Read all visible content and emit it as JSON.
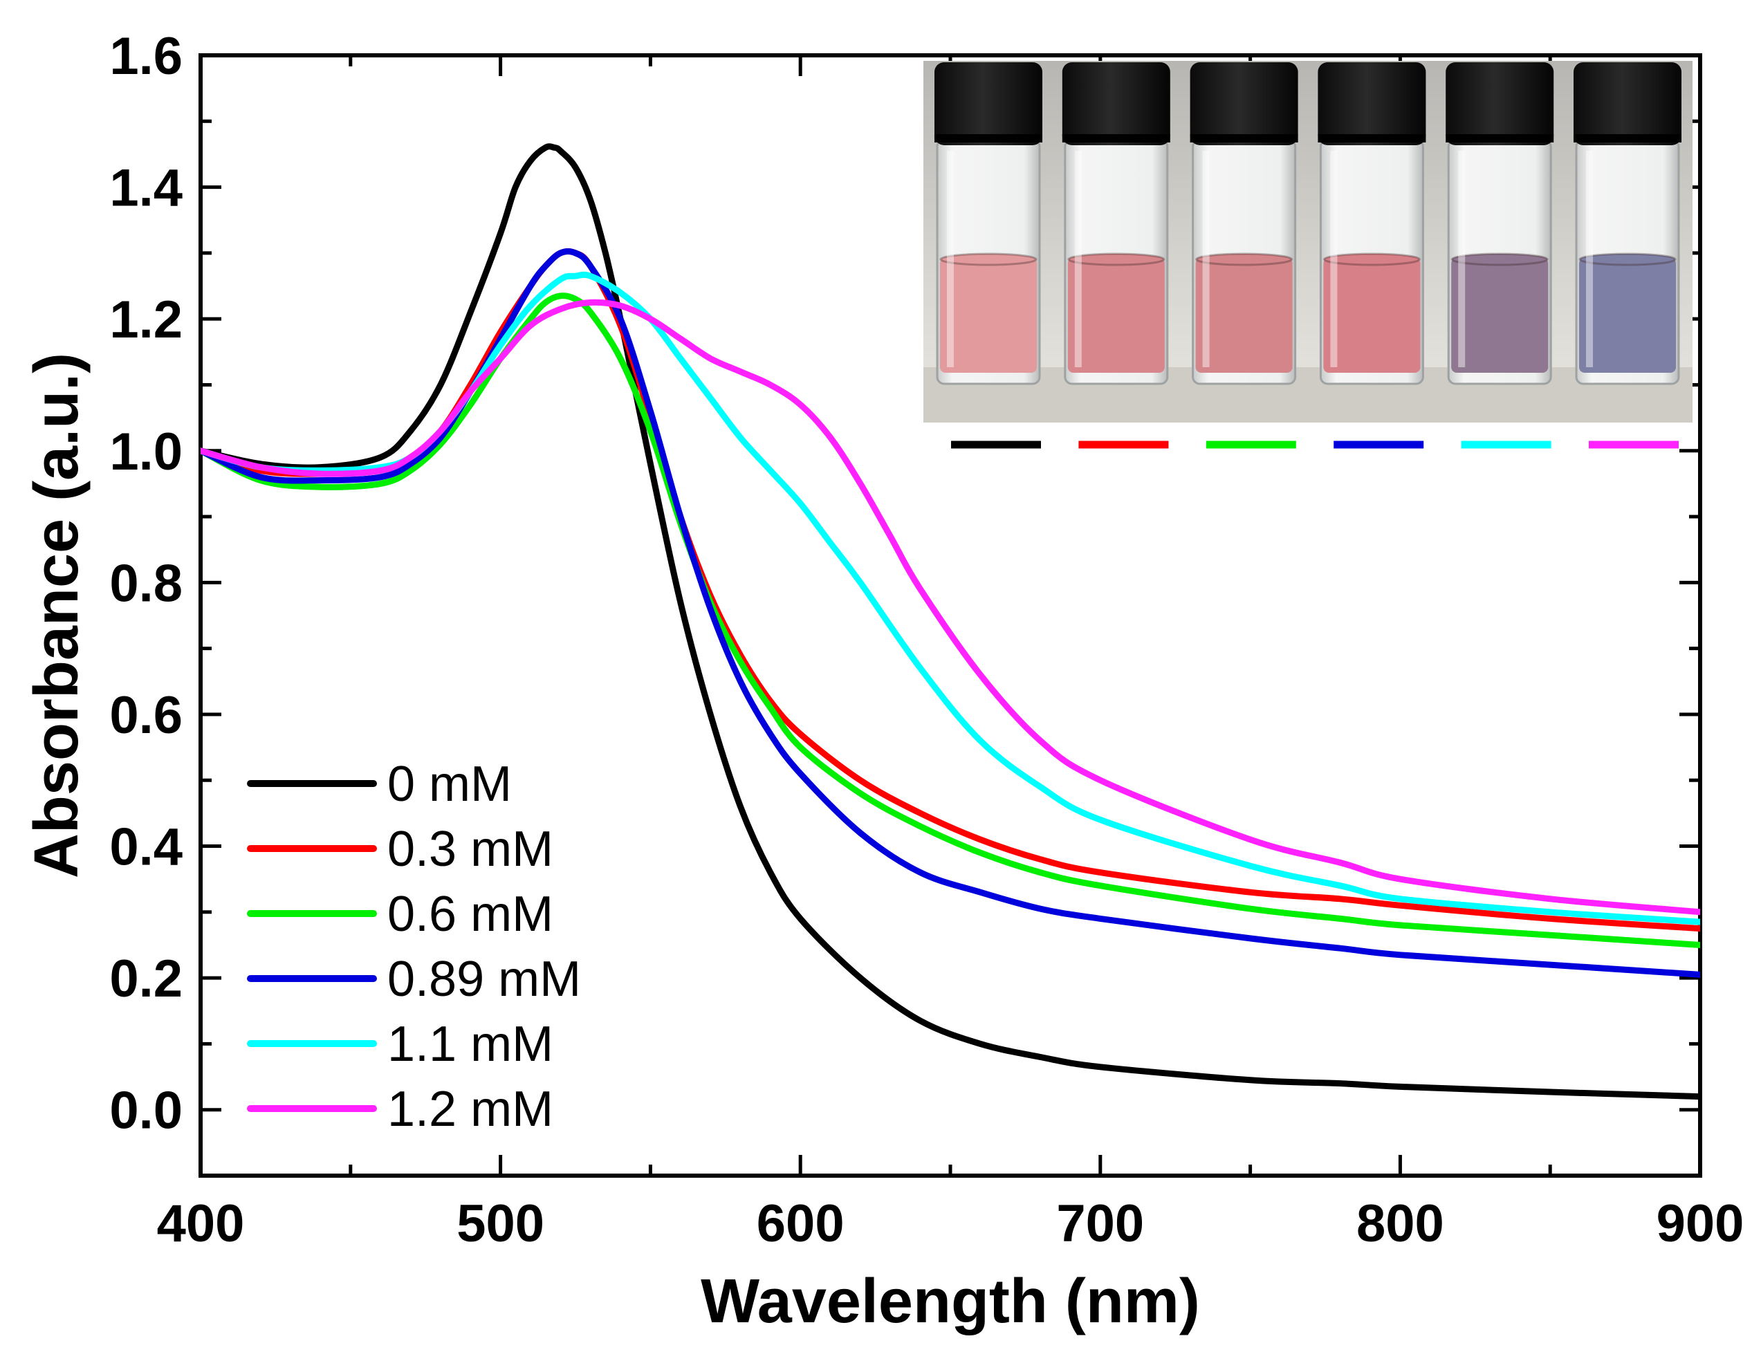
{
  "chart_data": {
    "type": "line",
    "title": "",
    "xlabel": "Wavelength (nm)",
    "ylabel": "Absorbance (a.u.)",
    "xlim": [
      400,
      900
    ],
    "ylim": [
      -0.1,
      1.6
    ],
    "xticks": [
      400,
      500,
      600,
      700,
      800,
      900
    ],
    "xtick_labels": [
      "400",
      "500",
      "600",
      "700",
      "800",
      "900"
    ],
    "yticks": [
      0.0,
      0.2,
      0.4,
      0.6,
      0.8,
      1.0,
      1.2,
      1.4,
      1.6
    ],
    "ytick_labels": [
      "0.0",
      "0.2",
      "0.4",
      "0.6",
      "0.8",
      "1.0",
      "1.2",
      "1.4",
      "1.6"
    ],
    "legend_position": "bottom-left",
    "grid": false,
    "series": [
      {
        "name": "0 mM",
        "color": "#000000",
        "x": [
          400,
          420,
          440,
          460,
          470,
          480,
          490,
          500,
          505,
          510,
          515,
          518,
          520,
          525,
          530,
          535,
          540,
          545,
          550,
          560,
          570,
          580,
          590,
          600,
          620,
          640,
          660,
          680,
          700,
          750,
          780,
          800,
          850,
          900
        ],
        "y": [
          1.0,
          0.98,
          0.975,
          0.99,
          1.03,
          1.1,
          1.21,
          1.33,
          1.4,
          1.44,
          1.46,
          1.46,
          1.455,
          1.43,
          1.38,
          1.3,
          1.2,
          1.09,
          0.98,
          0.77,
          0.6,
          0.46,
          0.36,
          0.29,
          0.2,
          0.135,
          0.1,
          0.08,
          0.065,
          0.045,
          0.04,
          0.035,
          0.027,
          0.02
        ]
      },
      {
        "name": "0.3 mM",
        "color": "#ff0000",
        "x": [
          400,
          420,
          440,
          460,
          470,
          480,
          490,
          500,
          510,
          515,
          520,
          525,
          530,
          540,
          550,
          560,
          570,
          580,
          590,
          600,
          620,
          640,
          660,
          680,
          700,
          750,
          780,
          800,
          850,
          900
        ],
        "y": [
          1.0,
          0.97,
          0.965,
          0.97,
          0.99,
          1.03,
          1.1,
          1.18,
          1.25,
          1.28,
          1.3,
          1.3,
          1.28,
          1.19,
          1.05,
          0.9,
          0.78,
          0.69,
          0.62,
          0.57,
          0.5,
          0.45,
          0.41,
          0.38,
          0.36,
          0.33,
          0.32,
          0.31,
          0.29,
          0.275
        ]
      },
      {
        "name": "0.6 mM",
        "color": "#00ee00",
        "x": [
          400,
          420,
          440,
          460,
          470,
          480,
          490,
          500,
          510,
          515,
          520,
          525,
          530,
          540,
          550,
          560,
          570,
          580,
          590,
          600,
          620,
          640,
          660,
          680,
          700,
          750,
          780,
          800,
          850,
          900
        ],
        "y": [
          1.0,
          0.955,
          0.945,
          0.95,
          0.97,
          1.01,
          1.07,
          1.14,
          1.2,
          1.225,
          1.235,
          1.23,
          1.21,
          1.14,
          1.03,
          0.89,
          0.77,
          0.68,
          0.61,
          0.55,
          0.48,
          0.43,
          0.39,
          0.36,
          0.34,
          0.305,
          0.29,
          0.28,
          0.265,
          0.25
        ]
      },
      {
        "name": "0.89 mM",
        "color": "#0000dd",
        "x": [
          400,
          420,
          440,
          460,
          470,
          480,
          490,
          500,
          510,
          515,
          520,
          525,
          530,
          540,
          550,
          560,
          570,
          580,
          590,
          600,
          620,
          640,
          660,
          680,
          700,
          750,
          780,
          800,
          850,
          900
        ],
        "y": [
          1.0,
          0.96,
          0.955,
          0.96,
          0.98,
          1.02,
          1.09,
          1.17,
          1.25,
          1.28,
          1.3,
          1.3,
          1.28,
          1.2,
          1.06,
          0.9,
          0.76,
          0.65,
          0.57,
          0.51,
          0.42,
          0.36,
          0.33,
          0.305,
          0.29,
          0.26,
          0.245,
          0.235,
          0.22,
          0.205
        ]
      },
      {
        "name": "1.1 mM",
        "color": "#00ffff",
        "x": [
          400,
          420,
          440,
          460,
          470,
          480,
          490,
          500,
          510,
          520,
          525,
          530,
          540,
          550,
          560,
          570,
          580,
          590,
          600,
          610,
          620,
          640,
          660,
          680,
          700,
          750,
          780,
          800,
          850,
          900
        ],
        "y": [
          1.0,
          0.975,
          0.97,
          0.975,
          0.99,
          1.03,
          1.09,
          1.16,
          1.22,
          1.26,
          1.265,
          1.265,
          1.24,
          1.2,
          1.14,
          1.08,
          1.02,
          0.97,
          0.92,
          0.86,
          0.8,
          0.67,
          0.56,
          0.49,
          0.44,
          0.37,
          0.34,
          0.32,
          0.3,
          0.285
        ]
      },
      {
        "name": "1.2 mM",
        "color": "#ff22ff",
        "x": [
          400,
          420,
          440,
          460,
          470,
          480,
          490,
          500,
          510,
          520,
          530,
          540,
          550,
          560,
          570,
          580,
          590,
          600,
          610,
          620,
          630,
          640,
          660,
          680,
          700,
          750,
          780,
          800,
          850,
          900
        ],
        "y": [
          1.0,
          0.975,
          0.965,
          0.97,
          0.99,
          1.03,
          1.09,
          1.14,
          1.19,
          1.215,
          1.225,
          1.22,
          1.2,
          1.17,
          1.14,
          1.12,
          1.1,
          1.07,
          1.02,
          0.95,
          0.87,
          0.79,
          0.66,
          0.56,
          0.5,
          0.41,
          0.375,
          0.35,
          0.32,
          0.3
        ]
      }
    ],
    "inset": {
      "content": "photograph of six vials with caps, solutions from pink to blue",
      "vials": [
        {
          "liquid_color": "#e29a9c",
          "series": "0 mM"
        },
        {
          "liquid_color": "#d7868c",
          "series": "0.3 mM"
        },
        {
          "liquid_color": "#d48589",
          "series": "0.6 mM"
        },
        {
          "liquid_color": "#d88087",
          "series": "0.89 mM"
        },
        {
          "liquid_color": "#8f7691",
          "series": "1.1 mM"
        },
        {
          "liquid_color": "#7d7fa5",
          "series": "1.2 mM"
        }
      ],
      "key_colors": [
        "#000000",
        "#ff0000",
        "#00ee00",
        "#0000dd",
        "#00ffff",
        "#ff22ff"
      ]
    }
  }
}
